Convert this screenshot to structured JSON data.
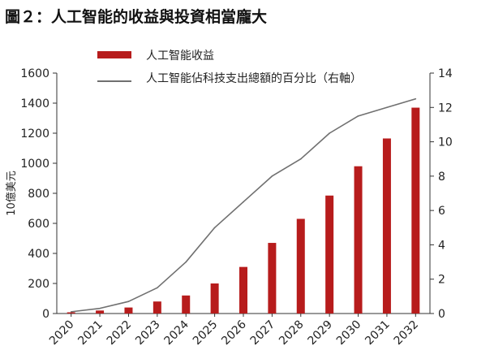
{
  "figure_title": "圖２：人工智能的收益與投資相當龐大",
  "colors": {
    "bar": "#B71C1C",
    "line": "#707070",
    "axis": "#333333"
  },
  "chart_data": {
    "type": "bar",
    "title": "圖２：人工智能的收益與投資相當龐大",
    "xlabel": "",
    "ylabel": "10億美元",
    "y2label": "",
    "categories": [
      "2020",
      "2021",
      "2022",
      "2023",
      "2024",
      "2025",
      "2026",
      "2027",
      "2028",
      "2029",
      "2030",
      "2031",
      "2032"
    ],
    "ylim": [
      0,
      1600
    ],
    "y_ticks": [
      0,
      200,
      400,
      600,
      800,
      1000,
      1200,
      1400,
      1600
    ],
    "y2lim": [
      0,
      14
    ],
    "y2_ticks": [
      0,
      2,
      4,
      6,
      8,
      10,
      12,
      14
    ],
    "grid": false,
    "legend_position": "top-center",
    "series": [
      {
        "name": "人工智能收益",
        "type": "bar",
        "axis": "left",
        "values": [
          8,
          20,
          40,
          80,
          120,
          200,
          310,
          470,
          630,
          785,
          980,
          1165,
          1370
        ]
      },
      {
        "name": "人工智能佔科技支出總額的百分比（右軸）",
        "type": "line",
        "axis": "right",
        "values": [
          0.1,
          0.3,
          0.7,
          1.5,
          3.0,
          5.0,
          6.5,
          8.0,
          9.0,
          10.5,
          11.5,
          12.0,
          12.5
        ]
      }
    ]
  }
}
